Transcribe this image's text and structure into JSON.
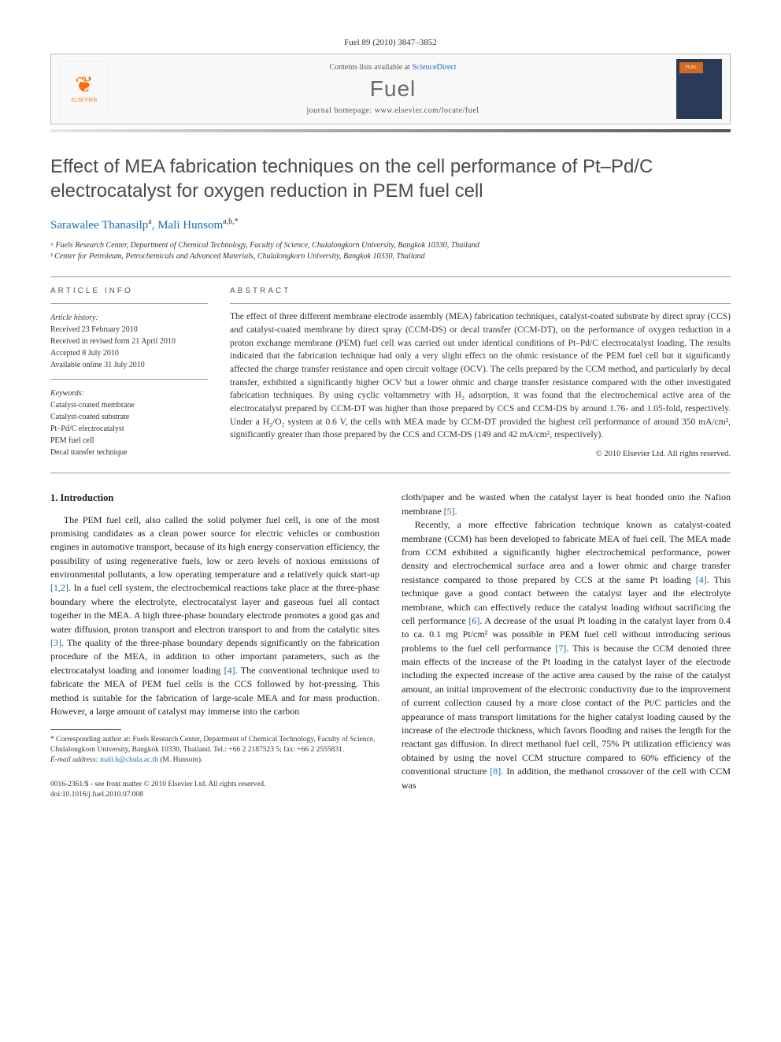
{
  "journal_ref": "Fuel 89 (2010) 3847–3852",
  "header": {
    "contents_prefix": "Contents lists available at ",
    "contents_link": "ScienceDirect",
    "journal_name": "Fuel",
    "homepage_prefix": "journal homepage: ",
    "homepage_url": "www.elsevier.com/locate/fuel",
    "publisher_name": "ELSEVIER",
    "cover_label": "FUEL"
  },
  "title": "Effect of MEA fabrication techniques on the cell performance of Pt–Pd/C electrocatalyst for oxygen reduction in PEM fuel cell",
  "authors_html": "Sarawalee Thanasilp ᵃ, Mali Hunsom ᵃ,ᵇ,*",
  "authors": [
    {
      "name": "Sarawalee Thanasilp",
      "marks": "a"
    },
    {
      "name": "Mali Hunsom",
      "marks": "a,b,*"
    }
  ],
  "affiliations": [
    "ᵃ Fuels Research Center, Department of Chemical Technology, Faculty of Science, Chulalongkorn University, Bangkok 10330, Thailand",
    "ᵇ Center for Petroleum, Petrochemicals and Advanced Materials, Chulalongkorn University, Bangkok 10330, Thailand"
  ],
  "article_info": {
    "label": "ARTICLE INFO",
    "history_heading": "Article history:",
    "history": [
      "Received 23 February 2010",
      "Received in revised form 21 April 2010",
      "Accepted 8 July 2010",
      "Available online 31 July 2010"
    ],
    "keywords_heading": "Keywords:",
    "keywords": [
      "Catalyst-coated membrane",
      "Catalyst-coated substrate",
      "Pt–Pd/C electrocatalyst",
      "PEM fuel cell",
      "Decal transfer technique"
    ]
  },
  "abstract": {
    "label": "ABSTRACT",
    "text": "The effect of three different membrane electrode assembly (MEA) fabrication techniques, catalyst-coated substrate by direct spray (CCS) and catalyst-coated membrane by direct spray (CCM-DS) or decal transfer (CCM-DT), on the performance of oxygen reduction in a proton exchange membrane (PEM) fuel cell was carried out under identical conditions of Pt–Pd/C electrocatalyst loading. The results indicated that the fabrication technique had only a very slight effect on the ohmic resistance of the PEM fuel cell but it significantly affected the charge transfer resistance and open circuit voltage (OCV). The cells prepared by the CCM method, and particularly by decal transfer, exhibited a significantly higher OCV but a lower ohmic and charge transfer resistance compared with the other investigated fabrication techniques. By using cyclic voltammetry with H₂ adsorption, it was found that the electrochemical active area of the electrocatalyst prepared by CCM-DT was higher than those prepared by CCS and CCM-DS by around 1.76- and 1.05-fold, respectively. Under a H₂/O₂ system at 0.6 V, the cells with MEA made by CCM-DT provided the highest cell performance of around 350 mA/cm², significantly greater than those prepared by the CCS and CCM-DS (149 and 42 mA/cm², respectively).",
    "copyright": "© 2010 Elsevier Ltd. All rights reserved."
  },
  "body": {
    "heading": "1. Introduction",
    "col1": [
      "The PEM fuel cell, also called the solid polymer fuel cell, is one of the most promising candidates as a clean power source for electric vehicles or combustion engines in automotive transport, because of its high energy conservation efficiency, the possibility of using regenerative fuels, low or zero levels of noxious emissions of environmental pollutants, a low operating temperature and a relatively quick start-up [1,2]. In a fuel cell system, the electrochemical reactions take place at the three-phase boundary where the electrolyte, electrocatalyst layer and gaseous fuel all contact together in the MEA. A high three-phase boundary electrode promotes a good gas and water diffusion, proton transport and electron transport to and from the catalytic sites [3]. The quality of the three-phase boundary depends significantly on the fabrication procedure of the MEA, in addition to other important parameters, such as the electrocatalyst loading and ionomer loading [4]. The conventional technique used to fabricate the MEA of PEM fuel cells is the CCS followed by hot-pressing. This method is suitable for the fabrication of large-scale MEA and for mass production. However, a large amount of catalyst may immerse into the carbon"
    ],
    "col2": [
      "cloth/paper and be wasted when the catalyst layer is heat bonded onto the Nafion membrane [5].",
      "Recently, a more effective fabrication technique known as catalyst-coated membrane (CCM) has been developed to fabricate MEA of fuel cell. The MEA made from CCM exhibited a significantly higher electrochemical performance, power density and electrochemical surface area and a lower ohmic and charge transfer resistance compared to those prepared by CCS at the same Pt loading [4]. This technique gave a good contact between the catalyst layer and the electrolyte membrane, which can effectively reduce the catalyst loading without sacrificing the cell performance [6]. A decrease of the usual Pt loading in the catalyst layer from 0.4 to ca. 0.1 mg Pt/cm² was possible in PEM fuel cell without introducing serious problems to the fuel cell performance [7]. This is because the CCM denoted three main effects of the increase of the Pt loading in the catalyst layer of the electrode including the expected increase of the active area caused by the raise of the catalyst amount, an initial improvement of the electronic conductivity due to the improvement of current collection caused by a more close contact of the Pt/C particles and the appearance of mass transport limitations for the higher catalyst loading caused by the increase of the electrode thickness, which favors flooding and raises the length for the reactant gas diffusion. In direct methanol fuel cell, 75% Pt utilization efficiency was obtained by using the novel CCM structure compared to 60% efficiency of the conventional structure [8]. In addition, the methanol crossover of the cell with CCM was"
    ]
  },
  "footnote": {
    "corresponding": "* Corresponding author at: Fuels Research Center, Department of Chemical Technology, Faculty of Science, Chulalongkorn University, Bangkok 10330, Thailand. Tel.: +66 2 2187523 5; fax: +66 2 2555831.",
    "email_label": "E-mail address:",
    "email": "mali.h@chula.ac.th",
    "email_person": "(M. Hunsom)."
  },
  "footer": {
    "issn_line": "0016-2361/$ - see front matter © 2010 Elsevier Ltd. All rights reserved.",
    "doi_line": "doi:10.1016/j.fuel.2010.07.008"
  },
  "colors": {
    "link": "#1a6bb8",
    "text": "#333333",
    "elsevier_orange": "#ff6b00",
    "journal_gray": "#6a6a6a",
    "border": "#bbbbbb"
  }
}
